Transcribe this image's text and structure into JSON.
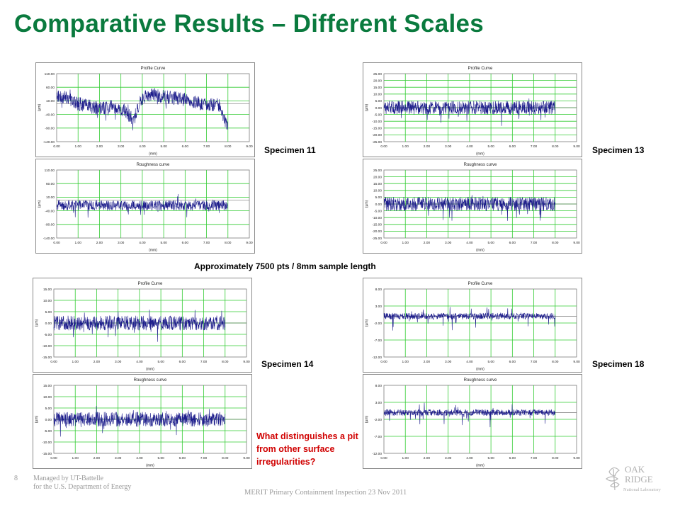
{
  "slide": {
    "title": "Comparative Results – Different Scales",
    "sample_note": "Approximately 7500 pts / 8mm sample length",
    "question": "What distinguishes a pit from other surface irregularities?",
    "specimens": [
      "Specimen 11",
      "Specimen 13",
      "Specimen 14",
      "Specimen 18"
    ]
  },
  "footer": {
    "page_number": "8",
    "managed_line1": "Managed by UT-Battelle",
    "managed_line2": "for the U.S. Department of Energy",
    "center": "MERIT Primary Containment Inspection 23 Nov 2011",
    "logo_words": [
      "OAK",
      "RIDGE",
      "National Laboratory"
    ]
  },
  "colors": {
    "title": "#0a7a3e",
    "question": "#d00000",
    "grid": "#33cc33",
    "trace": "#1e1e8c"
  },
  "chart_data": [
    {
      "type": "line",
      "title": "Profile Curve",
      "ylabel": "(µm)",
      "xlabel": "(mm)",
      "specimen": "Specimen 11",
      "x_range": [
        0,
        8
      ],
      "xlim": [
        0,
        9
      ],
      "grid": true,
      "xticks": [
        "0.00",
        "1.00",
        "2.00",
        "3.00",
        "4.00",
        "5.00",
        "6.00",
        "7.00",
        "8.00",
        "9.00"
      ],
      "yticks": [
        "110.00",
        "60.00",
        "10.00",
        "-40.00",
        "-90.00",
        "-140.00"
      ],
      "ylim": [
        -140,
        110
      ],
      "amplitude": 25,
      "spike": 40,
      "trend": [
        [
          0,
          30
        ],
        [
          0.5,
          20
        ],
        [
          1,
          0
        ],
        [
          2,
          -20
        ],
        [
          2.6,
          -10
        ],
        [
          3.1,
          -25
        ],
        [
          3.6,
          -60
        ],
        [
          4,
          25
        ],
        [
          4.5,
          35
        ],
        [
          5,
          25
        ],
        [
          6,
          15
        ],
        [
          7,
          -5
        ],
        [
          7.6,
          -5
        ],
        [
          8,
          -90
        ]
      ]
    },
    {
      "type": "line",
      "title": "Roughness curve",
      "ylabel": "(µm)",
      "xlabel": "(mm)",
      "specimen": "Specimen 11",
      "x_range": [
        0,
        8
      ],
      "xlim": [
        0,
        9
      ],
      "grid": true,
      "xticks": [
        "0.00",
        "1.00",
        "2.00",
        "3.00",
        "4.00",
        "5.00",
        "6.00",
        "7.00",
        "8.00",
        "9.00"
      ],
      "yticks": [
        "110.00",
        "60.00",
        "10.00",
        "-40.00",
        "-90.00",
        "-140.00"
      ],
      "ylim": [
        -140,
        110
      ],
      "amplitude": 18,
      "spike": 50,
      "trend": [
        [
          0,
          -20
        ],
        [
          8,
          -20
        ]
      ]
    },
    {
      "type": "line",
      "title": "Profile Curve",
      "ylabel": "(µm)",
      "xlabel": "(mm)",
      "specimen": "Specimen 13",
      "x_range": [
        0,
        8
      ],
      "xlim": [
        0,
        9
      ],
      "grid": true,
      "xticks": [
        "0.00",
        "1.00",
        "2.00",
        "3.00",
        "4.00",
        "5.00",
        "6.00",
        "7.00",
        "8.00",
        "9.00"
      ],
      "yticks": [
        "25.00",
        "20.00",
        "15.00",
        "10.00",
        "5.00",
        "0.00",
        "-5.00",
        "-10.00",
        "-15.00",
        "-20.00",
        "-25.00"
      ],
      "ylim": [
        -25,
        25
      ],
      "amplitude": 5,
      "spike": 12,
      "trend": [
        [
          0,
          0
        ],
        [
          8,
          0
        ]
      ]
    },
    {
      "type": "line",
      "title": "Roughness curve",
      "ylabel": "(µm)",
      "xlabel": "(mm)",
      "specimen": "Specimen 13",
      "x_range": [
        0,
        8
      ],
      "xlim": [
        0,
        9
      ],
      "grid": true,
      "xticks": [
        "0.00",
        "1.00",
        "2.00",
        "3.00",
        "4.00",
        "5.00",
        "6.00",
        "7.00",
        "8.00",
        "9.00"
      ],
      "yticks": [
        "25.00",
        "20.00",
        "15.00",
        "10.00",
        "5.00",
        "0.00",
        "-5.00",
        "-10.00",
        "-15.00",
        "-20.00",
        "-25.00"
      ],
      "ylim": [
        -25,
        25
      ],
      "amplitude": 5,
      "spike": 10,
      "trend": [
        [
          0,
          0
        ],
        [
          8,
          0
        ]
      ]
    },
    {
      "type": "line",
      "title": "Profile Curve",
      "ylabel": "(µm)",
      "xlabel": "(mm)",
      "specimen": "Specimen 14",
      "x_range": [
        0,
        8
      ],
      "xlim": [
        0,
        9
      ],
      "grid": true,
      "xticks": [
        "0.00",
        "1.00",
        "2.00",
        "3.00",
        "4.00",
        "5.00",
        "6.00",
        "7.00",
        "8.00",
        "9.00"
      ],
      "yticks": [
        "15.00",
        "10.00",
        "5.00",
        "0.00",
        "-5.00",
        "-10.00",
        "-15.00"
      ],
      "ylim": [
        -15,
        15
      ],
      "amplitude": 3.2,
      "spike": 6,
      "trend": [
        [
          0,
          0
        ],
        [
          8,
          0
        ]
      ]
    },
    {
      "type": "line",
      "title": "Roughness curve",
      "ylabel": "(µm)",
      "xlabel": "(mm)",
      "specimen": "Specimen 14",
      "x_range": [
        0,
        8
      ],
      "xlim": [
        0,
        9
      ],
      "grid": true,
      "xticks": [
        "0.00",
        "1.00",
        "2.00",
        "3.00",
        "4.00",
        "5.00",
        "6.00",
        "7.00",
        "8.00",
        "9.00"
      ],
      "yticks": [
        "15.00",
        "10.00",
        "5.00",
        "0.00",
        "-5.00",
        "-10.00",
        "-15.00"
      ],
      "ylim": [
        -15,
        15
      ],
      "amplitude": 3.2,
      "spike": 6,
      "trend": [
        [
          0,
          0
        ],
        [
          8,
          0
        ]
      ]
    },
    {
      "type": "line",
      "title": "Profile Curve",
      "ylabel": "(µm)",
      "xlabel": "(mm)",
      "specimen": "Specimen 18",
      "x_range": [
        0,
        8
      ],
      "xlim": [
        0,
        9
      ],
      "grid": true,
      "xticks": [
        "0.00",
        "1.00",
        "2.00",
        "3.00",
        "4.00",
        "5.00",
        "6.00",
        "7.00",
        "8.00",
        "9.00"
      ],
      "yticks": [
        "8.00",
        "3.00",
        "-2.00",
        "-7.00",
        "-12.00"
      ],
      "ylim": [
        -12,
        8
      ],
      "amplitude": 0.9,
      "spike": 4,
      "trend": [
        [
          0,
          0
        ],
        [
          8,
          0
        ]
      ]
    },
    {
      "type": "line",
      "title": "Roughness curve",
      "ylabel": "(µm)",
      "xlabel": "(mm)",
      "specimen": "Specimen 18",
      "x_range": [
        0,
        8
      ],
      "xlim": [
        0,
        9
      ],
      "grid": true,
      "xticks": [
        "0.00",
        "1.00",
        "2.00",
        "3.00",
        "4.00",
        "5.00",
        "6.00",
        "7.00",
        "8.00",
        "9.00"
      ],
      "yticks": [
        "8.00",
        "3.00",
        "-2.00",
        "-7.00",
        "-12.00"
      ],
      "ylim": [
        -12,
        8
      ],
      "amplitude": 0.9,
      "spike": 4,
      "trend": [
        [
          0,
          0
        ],
        [
          8,
          0
        ]
      ]
    }
  ]
}
